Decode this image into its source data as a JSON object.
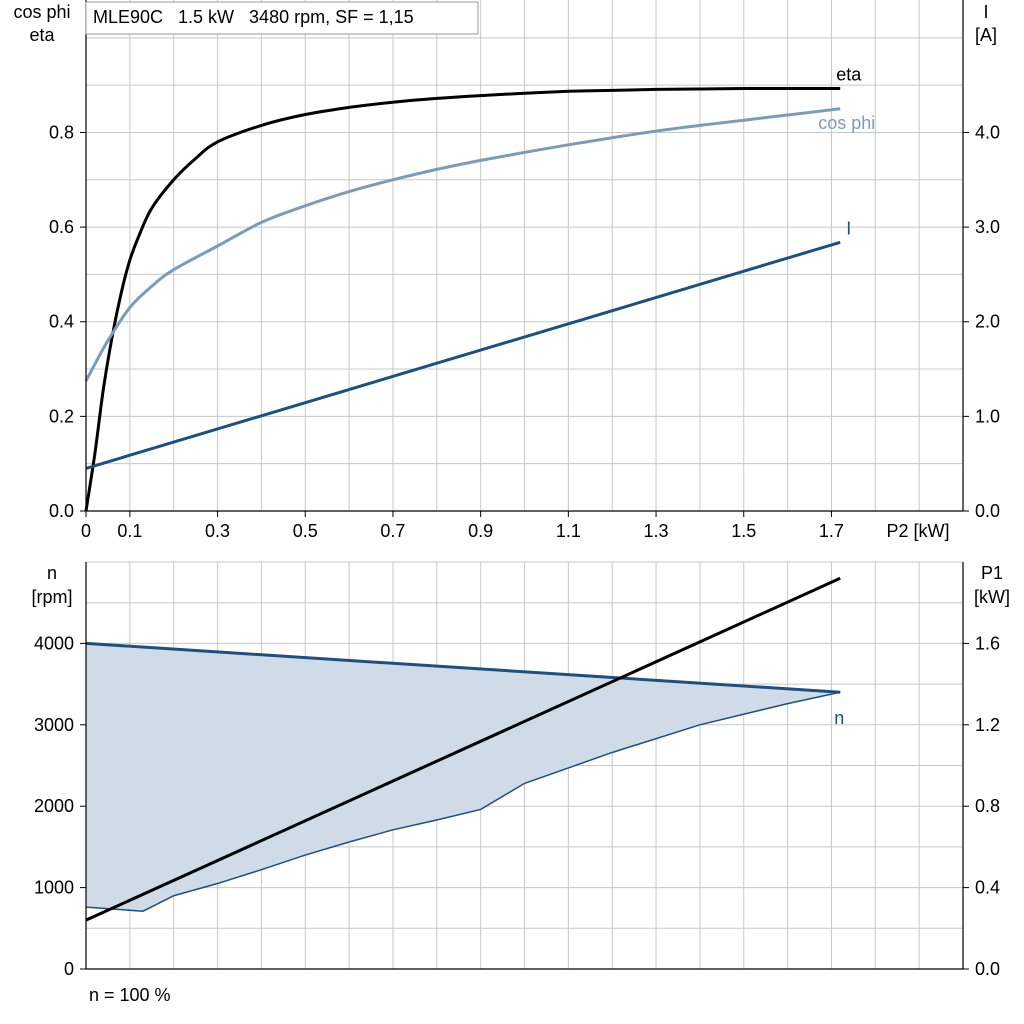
{
  "header": {
    "title": "MLE90C   1.5 kW   3480 rpm, SF = 1,15"
  },
  "footer": {
    "note": "n = 100 %"
  },
  "colors": {
    "grid": "#c8c8c8",
    "axis": "#000000",
    "eta": "#000000",
    "cosphi": "#7a9cbb",
    "current": "#1d4f80",
    "speed_band": "#cfdbe7",
    "speed_line": "#1d4f80",
    "p1": "#000000"
  },
  "chart_data": [
    {
      "type": "line",
      "x_label": "P2 [kW]",
      "left_axis_label_lines": [
        "cos phi",
        "eta"
      ],
      "right_axis_label_lines": [
        "I",
        "[A]"
      ],
      "x_ticks": [
        "0",
        "0.1",
        "0.3",
        "0.5",
        "0.7",
        "0.9",
        "1.1",
        "1.3",
        "1.5",
        "1.7"
      ],
      "y_left_ticks": [
        "0.0",
        "0.2",
        "0.4",
        "0.6",
        "0.8"
      ],
      "y_right_ticks": [
        "0.0",
        "1.0",
        "2.0",
        "3.0",
        "4.0"
      ],
      "xlim": [
        0,
        2.0
      ],
      "ylim_left": [
        0,
        1.08
      ],
      "ylim_right": [
        0,
        5.4
      ],
      "grid": true,
      "series": [
        {
          "name": "eta",
          "axis": "left",
          "color": "#000000",
          "x": [
            0,
            0.02,
            0.04,
            0.06,
            0.08,
            0.1,
            0.12,
            0.15,
            0.2,
            0.25,
            0.3,
            0.4,
            0.5,
            0.6,
            0.7,
            0.8,
            0.9,
            1.0,
            1.1,
            1.2,
            1.3,
            1.4,
            1.5,
            1.6,
            1.72
          ],
          "y": [
            0.0,
            0.12,
            0.26,
            0.37,
            0.46,
            0.53,
            0.58,
            0.64,
            0.7,
            0.745,
            0.78,
            0.815,
            0.838,
            0.853,
            0.864,
            0.872,
            0.878,
            0.883,
            0.887,
            0.889,
            0.891,
            0.892,
            0.893,
            0.893,
            0.893
          ]
        },
        {
          "name": "cos phi",
          "axis": "left",
          "color": "#7a9cbb",
          "x": [
            0,
            0.02,
            0.05,
            0.1,
            0.15,
            0.2,
            0.3,
            0.4,
            0.5,
            0.6,
            0.7,
            0.8,
            0.9,
            1.0,
            1.1,
            1.2,
            1.3,
            1.4,
            1.5,
            1.6,
            1.72
          ],
          "y": [
            0.275,
            0.31,
            0.36,
            0.43,
            0.475,
            0.51,
            0.56,
            0.61,
            0.645,
            0.675,
            0.7,
            0.722,
            0.741,
            0.758,
            0.774,
            0.789,
            0.803,
            0.815,
            0.826,
            0.837,
            0.85
          ]
        },
        {
          "name": "I",
          "axis": "right",
          "color": "#1d4f80",
          "x": [
            0,
            1.72
          ],
          "y": [
            0.45,
            2.84
          ]
        }
      ]
    },
    {
      "type": "line",
      "left_axis_label_lines": [
        "n",
        "[rpm]"
      ],
      "right_axis_label_lines": [
        "P1",
        "[kW]"
      ],
      "y_left_ticks": [
        "0",
        "1000",
        "2000",
        "3000",
        "4000"
      ],
      "y_right_ticks": [
        "0.0",
        "0.4",
        "0.8",
        "1.2",
        "1.6"
      ],
      "xlim": [
        0,
        2.0
      ],
      "ylim_left": [
        0,
        5000
      ],
      "ylim_right": [
        0,
        2.0
      ],
      "grid": true,
      "series": [
        {
          "name": "n",
          "axis": "left",
          "color": "#1d4f80",
          "type": "area",
          "x_upper": [
            0,
            1.72
          ],
          "y_upper": [
            4000,
            3400
          ],
          "x_lower": [
            0,
            0.13,
            0.2,
            0.3,
            0.4,
            0.5,
            0.6,
            0.7,
            0.8,
            0.9,
            1.0,
            1.2,
            1.4,
            1.6,
            1.72
          ],
          "y_lower": [
            760,
            710,
            900,
            1050,
            1220,
            1400,
            1560,
            1710,
            1830,
            1960,
            2280,
            2660,
            3000,
            3260,
            3400
          ]
        },
        {
          "name": "",
          "axis": "right",
          "color": "#000000",
          "x": [
            0,
            1.72
          ],
          "y": [
            0.24,
            1.92
          ]
        }
      ]
    }
  ]
}
